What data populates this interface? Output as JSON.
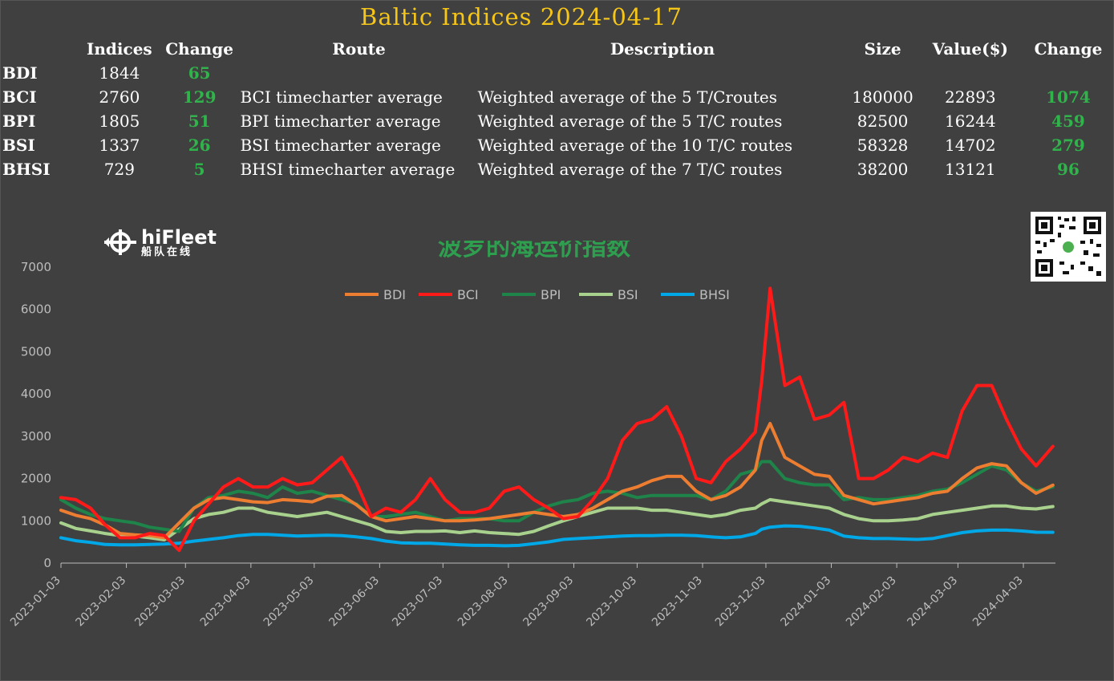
{
  "title": "Baltic Indices 2024-04-17",
  "table": {
    "headers": {
      "indices": "Indices",
      "change": "Change",
      "route": "Route",
      "description": "Description",
      "size": "Size",
      "value": "Value($)",
      "change2": "Change"
    },
    "rows": [
      {
        "name": "BDI",
        "index": "1844",
        "change": "65",
        "route": "",
        "description": "",
        "size": "",
        "value": "",
        "change2": ""
      },
      {
        "name": "BCI",
        "index": "2760",
        "change": "129",
        "route": "BCI timecharter average",
        "description": "Weighted average of the 5 T/Croutes",
        "size": "180000",
        "value": "22893",
        "change2": "1074"
      },
      {
        "name": "BPI",
        "index": "1805",
        "change": "51",
        "route": "BPI timecharter average",
        "description": "Weighted average of the 5 T/C routes",
        "size": "82500",
        "value": "16244",
        "change2": "459"
      },
      {
        "name": "BSI",
        "index": "1337",
        "change": "26",
        "route": "BSI timecharter average",
        "description": "Weighted average of the 10 T/C routes",
        "size": "58328",
        "value": "14702",
        "change2": "279"
      },
      {
        "name": "BHSI",
        "index": "729",
        "change": "5",
        "route": "BHSI timecharter average",
        "description": "Weighted average of the 7 T/C routes",
        "size": "38200",
        "value": "13121",
        "change2": "96"
      }
    ]
  },
  "logo": {
    "main": "hiFleet",
    "sub": "船队在线"
  },
  "chart_data": {
    "type": "line",
    "title": "波罗的海运价指数",
    "xlabel": "",
    "ylabel": "",
    "ylim": [
      0,
      7000
    ],
    "yticks": [
      0,
      1000,
      2000,
      3000,
      4000,
      5000,
      6000,
      7000
    ],
    "xticks": [
      "2023-01-03",
      "2023-02-03",
      "2023-03-03",
      "2023-04-03",
      "2023-05-03",
      "2023-06-03",
      "2023-07-03",
      "2023-08-03",
      "2023-09-03",
      "2023-10-03",
      "2023-11-03",
      "2023-12-03",
      "2024-01-03",
      "2024-02-03",
      "2024-03-03",
      "2024-04-03"
    ],
    "x_dates": [
      "2023-01-03",
      "2023-01-10",
      "2023-01-17",
      "2023-01-24",
      "2023-01-31",
      "2023-02-07",
      "2023-02-14",
      "2023-02-21",
      "2023-02-28",
      "2023-03-07",
      "2023-03-14",
      "2023-03-21",
      "2023-03-28",
      "2023-04-04",
      "2023-04-11",
      "2023-04-18",
      "2023-04-25",
      "2023-05-02",
      "2023-05-09",
      "2023-05-16",
      "2023-05-23",
      "2023-05-30",
      "2023-06-06",
      "2023-06-13",
      "2023-06-20",
      "2023-06-27",
      "2023-07-04",
      "2023-07-11",
      "2023-07-18",
      "2023-07-25",
      "2023-08-01",
      "2023-08-08",
      "2023-08-15",
      "2023-08-22",
      "2023-08-29",
      "2023-09-05",
      "2023-09-12",
      "2023-09-19",
      "2023-09-26",
      "2023-10-03",
      "2023-10-10",
      "2023-10-17",
      "2023-10-24",
      "2023-10-31",
      "2023-11-07",
      "2023-11-14",
      "2023-11-21",
      "2023-11-28",
      "2023-12-01",
      "2023-12-05",
      "2023-12-12",
      "2023-12-19",
      "2023-12-26",
      "2024-01-02",
      "2024-01-09",
      "2024-01-16",
      "2024-01-23",
      "2024-01-30",
      "2024-02-06",
      "2024-02-13",
      "2024-02-20",
      "2024-02-27",
      "2024-03-05",
      "2024-03-12",
      "2024-03-19",
      "2024-03-26",
      "2024-04-02",
      "2024-04-09",
      "2024-04-17"
    ],
    "series": [
      {
        "name": "BDI",
        "color": "#ed7d31",
        "values": [
          1250,
          1130,
          1050,
          900,
          700,
          670,
          650,
          600,
          950,
          1300,
          1500,
          1550,
          1500,
          1450,
          1430,
          1500,
          1480,
          1450,
          1580,
          1600,
          1380,
          1100,
          1000,
          1050,
          1100,
          1050,
          1000,
          1000,
          1020,
          1050,
          1100,
          1150,
          1200,
          1150,
          1100,
          1150,
          1300,
          1500,
          1700,
          1800,
          1950,
          2050,
          2050,
          1700,
          1500,
          1600,
          1800,
          2200,
          2900,
          3300,
          2500,
          2300,
          2100,
          2050,
          1600,
          1500,
          1400,
          1450,
          1500,
          1550,
          1650,
          1700,
          2000,
          2250,
          2350,
          2300,
          1900,
          1650,
          1844
        ]
      },
      {
        "name": "BCI",
        "color": "#ff1a1a",
        "values": [
          1550,
          1500,
          1300,
          900,
          600,
          600,
          700,
          650,
          300,
          1000,
          1400,
          1800,
          2000,
          1800,
          1800,
          2000,
          1850,
          1900,
          2200,
          2500,
          1900,
          1100,
          1300,
          1200,
          1500,
          2000,
          1500,
          1200,
          1200,
          1300,
          1700,
          1800,
          1500,
          1300,
          1050,
          1100,
          1500,
          2000,
          2900,
          3300,
          3400,
          3700,
          3000,
          2000,
          1900,
          2400,
          2700,
          3100,
          4300,
          6500,
          4200,
          4400,
          3400,
          3500,
          3800,
          2000,
          2000,
          2200,
          2500,
          2400,
          2600,
          2500,
          3600,
          4200,
          4200,
          3400,
          2700,
          2300,
          2760
        ]
      },
      {
        "name": "BPI",
        "color": "#1e8449",
        "values": [
          1500,
          1300,
          1150,
          1050,
          1000,
          950,
          850,
          800,
          750,
          1300,
          1550,
          1600,
          1700,
          1650,
          1550,
          1800,
          1650,
          1700,
          1600,
          1500,
          1400,
          1100,
          1100,
          1150,
          1200,
          1100,
          1000,
          1050,
          1050,
          1050,
          1000,
          1000,
          1200,
          1350,
          1450,
          1500,
          1650,
          1700,
          1650,
          1550,
          1600,
          1600,
          1600,
          1600,
          1500,
          1700,
          2100,
          2200,
          2400,
          2400,
          2000,
          1900,
          1850,
          1850,
          1500,
          1550,
          1500,
          1500,
          1550,
          1600,
          1700,
          1750,
          1900,
          2100,
          2300,
          2200,
          1900,
          1700,
          1805
        ]
      },
      {
        "name": "BSI",
        "color": "#a9d18e",
        "values": [
          950,
          820,
          760,
          700,
          650,
          640,
          600,
          550,
          800,
          1050,
          1150,
          1200,
          1300,
          1300,
          1200,
          1150,
          1100,
          1150,
          1200,
          1100,
          1000,
          900,
          750,
          720,
          750,
          750,
          760,
          720,
          760,
          720,
          700,
          680,
          750,
          880,
          1000,
          1100,
          1200,
          1300,
          1300,
          1300,
          1250,
          1250,
          1200,
          1150,
          1100,
          1150,
          1250,
          1300,
          1400,
          1500,
          1450,
          1400,
          1350,
          1300,
          1150,
          1050,
          1000,
          1000,
          1020,
          1050,
          1150,
          1200,
          1250,
          1300,
          1350,
          1350,
          1300,
          1280,
          1337
        ]
      },
      {
        "name": "BHSI",
        "color": "#00a8e8",
        "values": [
          600,
          530,
          490,
          440,
          430,
          430,
          440,
          450,
          470,
          520,
          560,
          600,
          650,
          680,
          680,
          660,
          640,
          650,
          660,
          650,
          620,
          580,
          520,
          480,
          470,
          470,
          450,
          430,
          420,
          420,
          410,
          420,
          460,
          500,
          560,
          580,
          600,
          620,
          640,
          650,
          650,
          660,
          660,
          650,
          620,
          600,
          620,
          700,
          800,
          850,
          880,
          870,
          830,
          780,
          640,
          600,
          580,
          580,
          570,
          560,
          580,
          650,
          720,
          760,
          780,
          780,
          760,
          730,
          729
        ]
      }
    ]
  }
}
